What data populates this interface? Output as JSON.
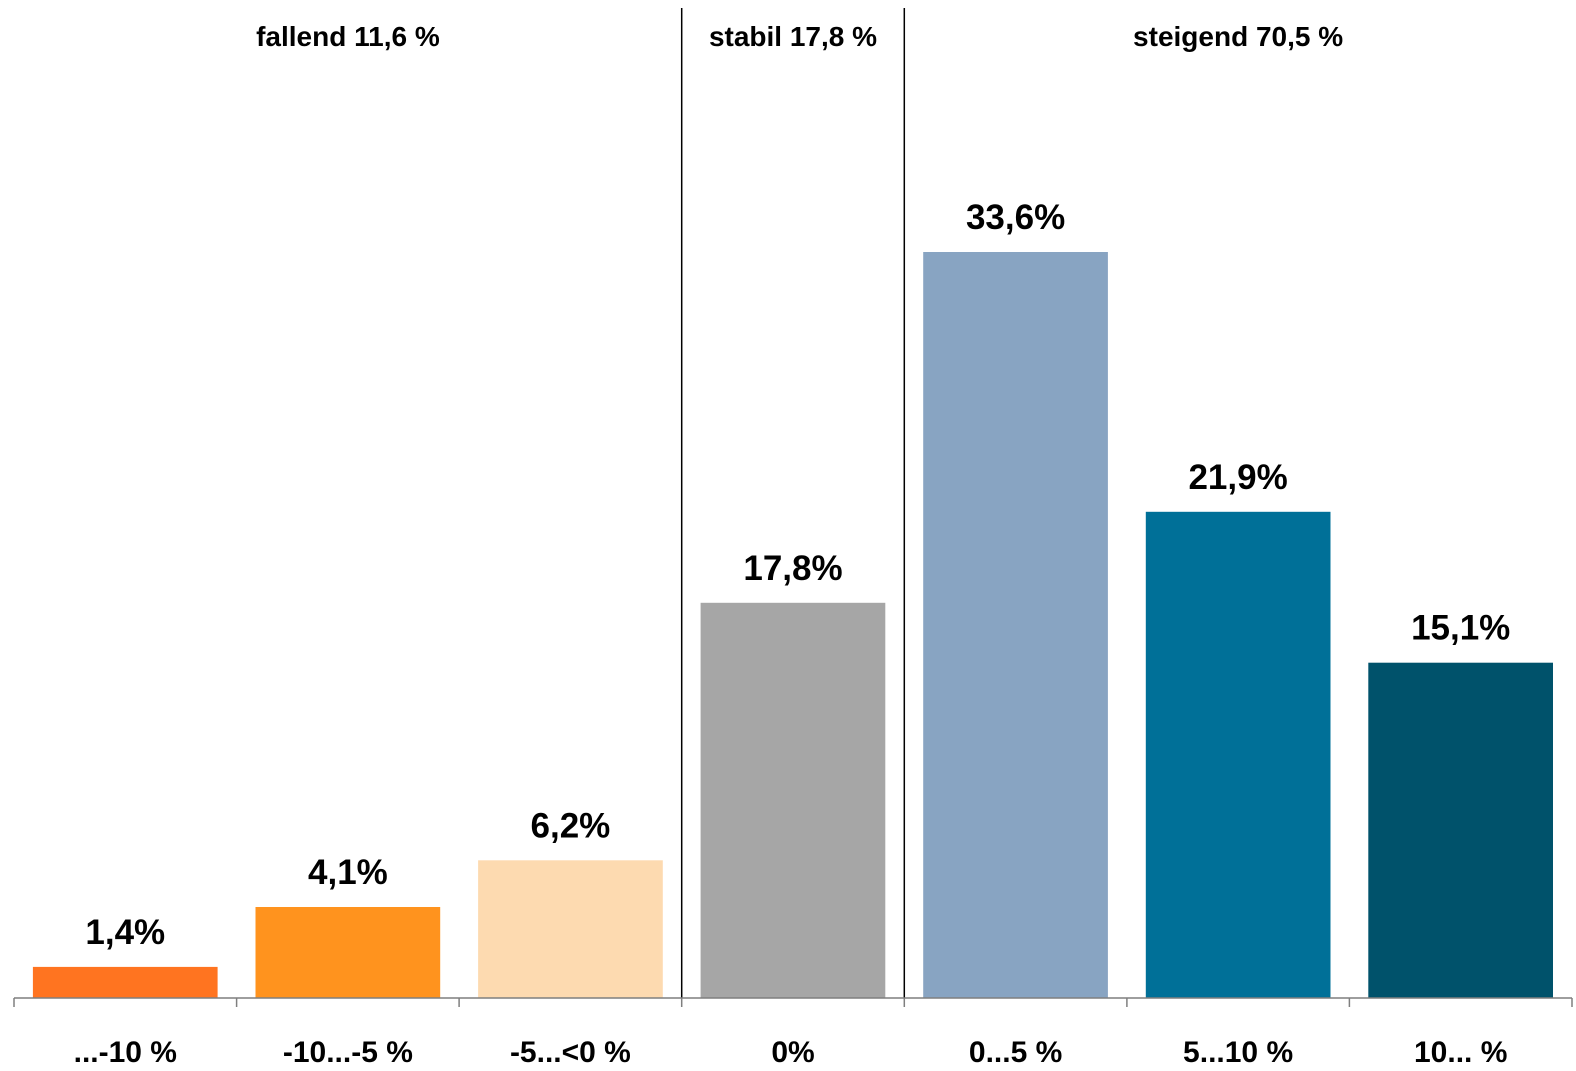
{
  "chart_data": {
    "type": "bar",
    "categories": [
      "...-10 %",
      "-10...-5 %",
      "-5...<0 %",
      "0%",
      "0...5 %",
      "5...10 %",
      "10... %"
    ],
    "values": [
      1.4,
      4.1,
      6.2,
      17.8,
      33.6,
      21.9,
      15.1
    ],
    "data_labels": [
      "1,4%",
      "4,1%",
      "6,2%",
      "17,8%",
      "33,6%",
      "21,9%",
      "15,1%"
    ],
    "colors": [
      "#FF7420",
      "#FF931E",
      "#FDDAB0",
      "#A6A6A6",
      "#88A4C2",
      "#007098",
      "#00526B"
    ],
    "ylim": [
      0,
      45
    ],
    "grid": false,
    "groups": [
      {
        "label": "fallend  11,6 %",
        "categories": [
          0,
          1,
          2
        ]
      },
      {
        "label": "stabil 17,8 %",
        "categories": [
          3
        ]
      },
      {
        "label": "steigend 70,5 %",
        "categories": [
          4,
          5,
          6
        ]
      }
    ],
    "title": "",
    "xlabel": "",
    "ylabel": ""
  }
}
